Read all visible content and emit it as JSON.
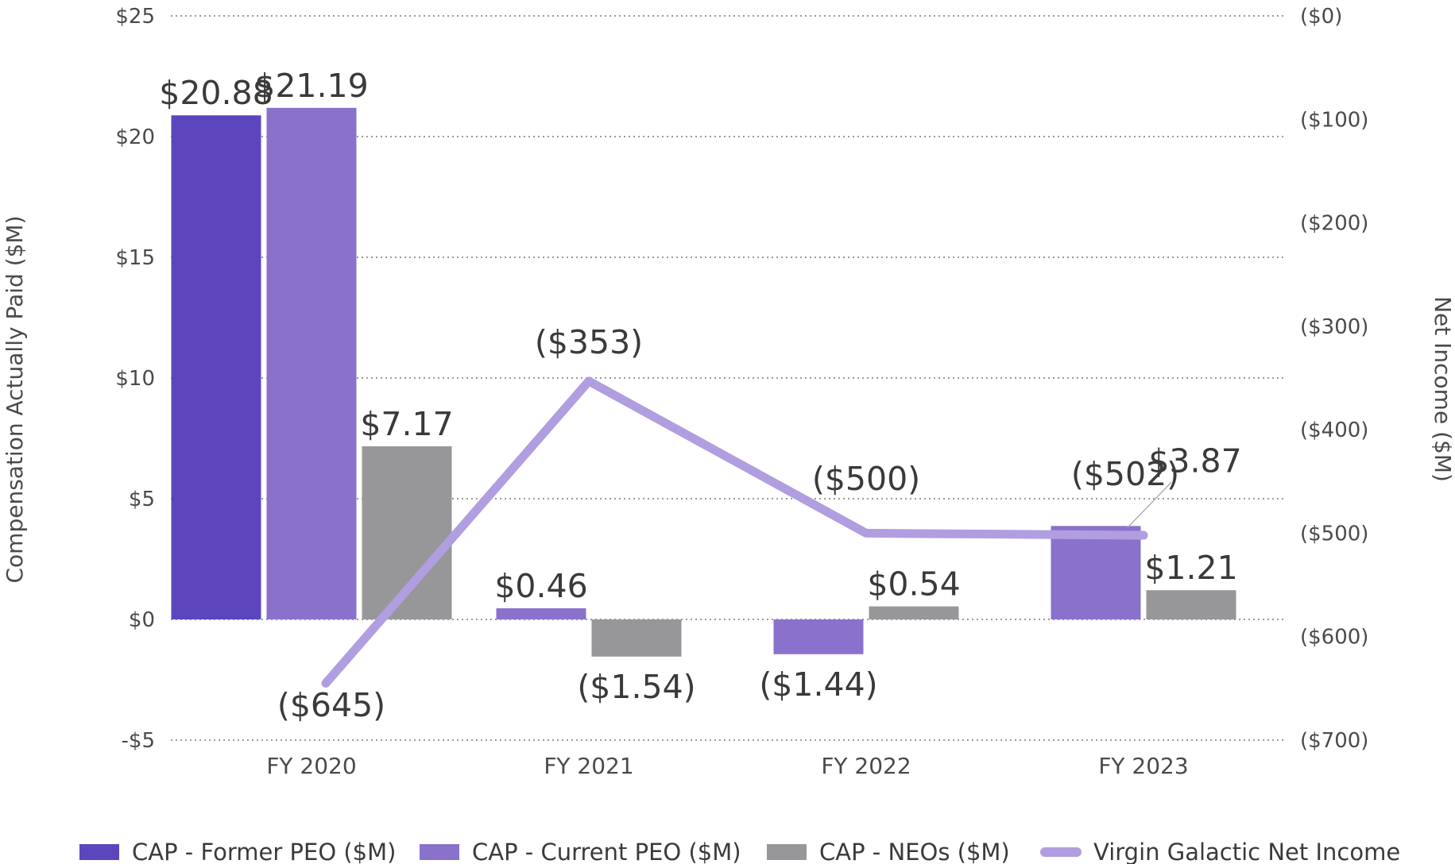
{
  "chart_data": {
    "type": "bar",
    "categories": [
      "FY 2020",
      "FY 2021",
      "FY 2022",
      "FY 2023"
    ],
    "ylabel": "Compensation Actually Paid ($M)",
    "y2label": "Net Income ($M)",
    "ylim": [
      -5,
      25
    ],
    "y2lim": [
      -700,
      0
    ],
    "yticks": [
      {
        "value": 25,
        "label": "$25"
      },
      {
        "value": 20,
        "label": "$20"
      },
      {
        "value": 15,
        "label": "$15"
      },
      {
        "value": 10,
        "label": "$10"
      },
      {
        "value": 5,
        "label": "$5"
      },
      {
        "value": 0,
        "label": "$0"
      },
      {
        "value": -5,
        "label": "-$5"
      }
    ],
    "y2ticks": [
      {
        "value": 0,
        "label": "($0)"
      },
      {
        "value": -100,
        "label": "($100)"
      },
      {
        "value": -200,
        "label": "($200)"
      },
      {
        "value": -300,
        "label": "($300)"
      },
      {
        "value": -400,
        "label": "($400)"
      },
      {
        "value": -500,
        "label": "($500)"
      },
      {
        "value": -600,
        "label": "($600)"
      },
      {
        "value": -700,
        "label": "($700)"
      }
    ],
    "grid": true,
    "legend_position": "bottom",
    "series": [
      {
        "name": "CAP - Former PEO ($M)",
        "kind": "bar",
        "axis": "left",
        "color": "#5d45bd",
        "values": [
          20.88,
          null,
          null,
          null
        ],
        "labels": [
          "$20.88",
          null,
          null,
          null
        ]
      },
      {
        "name": "CAP - Current PEO ($M)",
        "kind": "bar",
        "axis": "left",
        "color": "#8a71cc",
        "values": [
          21.19,
          0.46,
          -1.44,
          3.87
        ],
        "labels": [
          "$21.19",
          "$0.46",
          "($1.44)",
          "$3.87"
        ]
      },
      {
        "name": "CAP - NEOs ($M)",
        "kind": "bar",
        "axis": "left",
        "color": "#97979a",
        "values": [
          7.17,
          -1.54,
          0.54,
          1.21
        ],
        "labels": [
          "$7.17",
          "($1.54)",
          "$0.54",
          "$1.21"
        ]
      },
      {
        "name": "Virgin Galactic Net Income",
        "kind": "line",
        "axis": "right",
        "color": "#b09ee0",
        "values": [
          -645,
          -353,
          -500,
          -502
        ],
        "labels": [
          "($645)",
          "($353)",
          "($500)",
          "($502)"
        ]
      }
    ]
  }
}
